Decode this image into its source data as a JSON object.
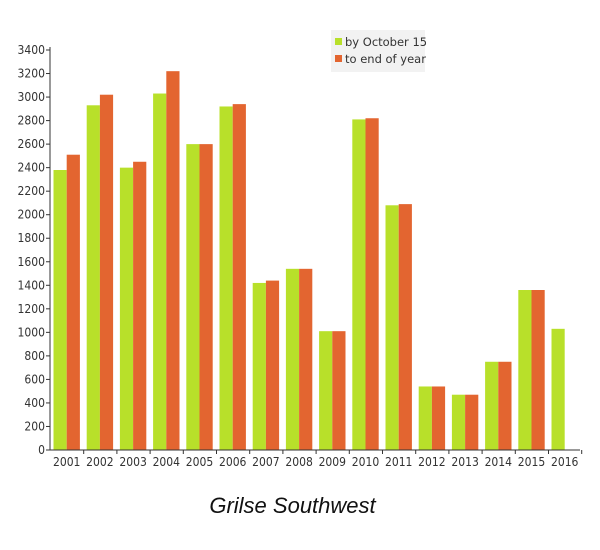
{
  "chart_data": {
    "type": "bar",
    "title": "Grilse Southwest",
    "xlabel": "",
    "ylabel": "",
    "ylim": [
      0,
      3400
    ],
    "yticks": [
      0,
      200,
      400,
      600,
      800,
      1000,
      1200,
      1400,
      1600,
      1800,
      2000,
      2200,
      2400,
      2600,
      2800,
      3000,
      3200,
      3400
    ],
    "grid": false,
    "legend_position": "top-right",
    "categories": [
      "2001",
      "2002",
      "2003",
      "2004",
      "2005",
      "2006",
      "2007",
      "2008",
      "2009",
      "2010",
      "2011",
      "2012",
      "2013",
      "2014",
      "2015",
      "2016"
    ],
    "series": [
      {
        "name": "by October 15",
        "color": "#b8e02a",
        "values": [
          2380,
          2930,
          2400,
          3030,
          2600,
          2920,
          1420,
          1540,
          1010,
          2810,
          2080,
          540,
          470,
          750,
          1360,
          1030
        ]
      },
      {
        "name": "to end of year",
        "color": "#e36530",
        "values": [
          2510,
          3020,
          2450,
          3220,
          2600,
          2940,
          1440,
          1540,
          1010,
          2820,
          2090,
          540,
          470,
          750,
          1360,
          null
        ]
      }
    ]
  }
}
